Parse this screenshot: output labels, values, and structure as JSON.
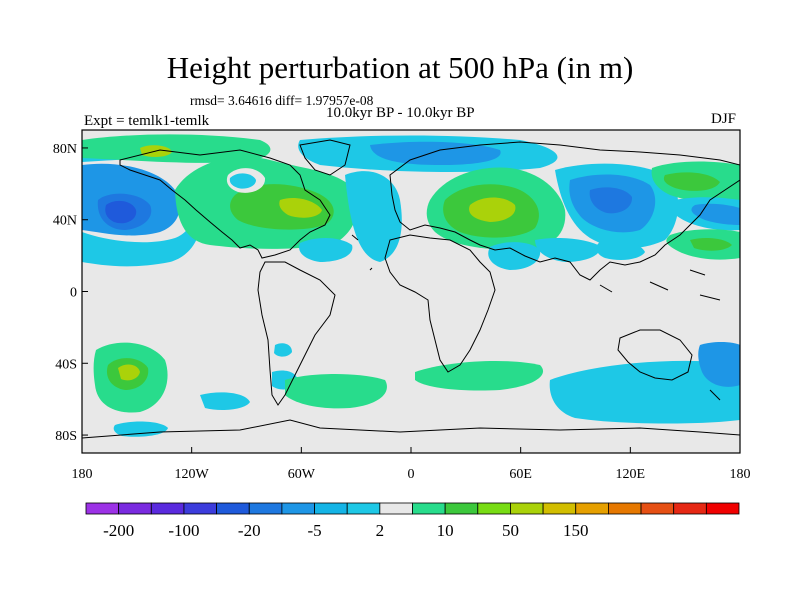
{
  "header": {
    "title": "Height perturbation at 500 hPa (in m)",
    "stats": "rmsd= 3.64616 diff= 1.97957e-08",
    "period": "10.0kyr BP - 10.0kyr BP",
    "experiment": "Expt = temlk1-temlk",
    "season": "DJF"
  },
  "axes": {
    "lat_ticks": [
      {
        "value": 80,
        "label": "80N"
      },
      {
        "value": 40,
        "label": "40N"
      },
      {
        "value": 0,
        "label": "0"
      },
      {
        "value": -40,
        "label": "40S"
      },
      {
        "value": -80,
        "label": "80S"
      }
    ],
    "lon_ticks": [
      {
        "value": -180,
        "label": "180"
      },
      {
        "value": -120,
        "label": "120W"
      },
      {
        "value": -60,
        "label": "60W"
      },
      {
        "value": 0,
        "label": "0"
      },
      {
        "value": 60,
        "label": "60E"
      },
      {
        "value": 120,
        "label": "120E"
      },
      {
        "value": 180,
        "label": "180"
      }
    ],
    "lon_range": [
      -180,
      180
    ],
    "lat_range": [
      -90,
      90
    ]
  },
  "colorbar": {
    "colors": [
      "#9C32E6",
      "#7A2BE0",
      "#5A2ADE",
      "#3C3CDC",
      "#1F5ADB",
      "#1E78E0",
      "#1E96E6",
      "#14B4E6",
      "#1EC8E6",
      "#E8E8E8",
      "#28DC8C",
      "#3CC83C",
      "#78DC14",
      "#AAD20A",
      "#D2BE00",
      "#E6A000",
      "#E67800",
      "#E65014",
      "#E62814",
      "#F00000"
    ],
    "labels": [
      {
        "boundary": 1,
        "text": "-200"
      },
      {
        "boundary": 3,
        "text": "-100"
      },
      {
        "boundary": 5,
        "text": "-20"
      },
      {
        "boundary": 7,
        "text": "-5"
      },
      {
        "boundary": 9,
        "text": "2"
      },
      {
        "boundary": 11,
        "text": "10"
      },
      {
        "boundary": 13,
        "text": "50"
      },
      {
        "boundary": 15,
        "text": "150"
      }
    ]
  },
  "colors": {
    "background": "#E8E8E8",
    "light_blue": "#1EC8E6",
    "mid_blue": "#1E96E6",
    "blue": "#1E78E0",
    "dark_blue": "#1F5ADB",
    "teal_green": "#28DC8C",
    "green": "#3CC83C",
    "yellow_green": "#AAD20A"
  }
}
